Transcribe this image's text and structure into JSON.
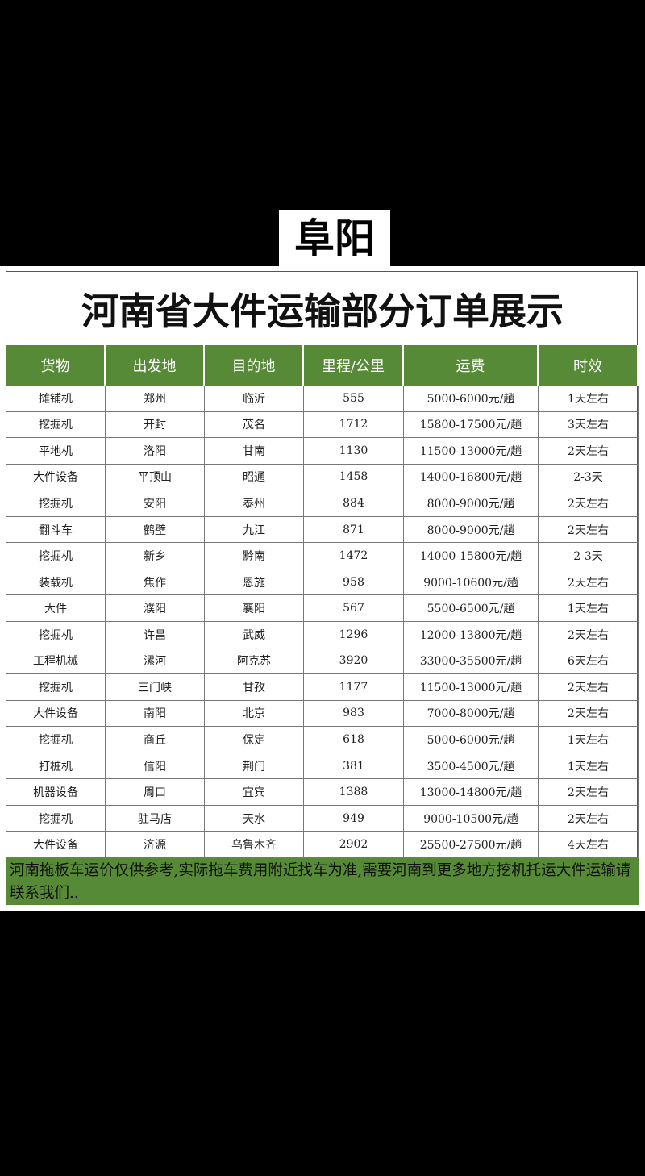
{
  "header": {
    "badge": "阜阳"
  },
  "table": {
    "title": "河南省大件运输部分订单展示",
    "columns": [
      "货物",
      "出发地",
      "目的地",
      "里程/公里",
      "运费",
      "时效"
    ],
    "rows": [
      [
        "摊铺机",
        "郑州",
        "临沂",
        555,
        "5000-6000元/趟",
        "1天左右"
      ],
      [
        "挖掘机",
        "开封",
        "茂名",
        1712,
        "15800-17500元/趟",
        "3天左右"
      ],
      [
        "平地机",
        "洛阳",
        "甘南",
        1130,
        "11500-13000元/趟",
        "2天左右"
      ],
      [
        "大件设备",
        "平顶山",
        "昭通",
        1458,
        "14000-16800元/趟",
        "2-3天"
      ],
      [
        "挖掘机",
        "安阳",
        "泰州",
        884,
        "8000-9000元/趟",
        "2天左右"
      ],
      [
        "翻斗车",
        "鹤壁",
        "九江",
        871,
        "8000-9000元/趟",
        "2天左右"
      ],
      [
        "挖掘机",
        "新乡",
        "黔南",
        1472,
        "14000-15800元/趟",
        "2-3天"
      ],
      [
        "装载机",
        "焦作",
        "恩施",
        958,
        "9000-10600元/趟",
        "2天左右"
      ],
      [
        "大件",
        "濮阳",
        "襄阳",
        567,
        "5500-6500元/趟",
        "1天左右"
      ],
      [
        "挖掘机",
        "许昌",
        "武威",
        1296,
        "12000-13800元/趟",
        "2天左右"
      ],
      [
        "工程机械",
        "漯河",
        "阿克苏",
        3920,
        "33000-35500元/趟",
        "6天左右"
      ],
      [
        "挖掘机",
        "三门峡",
        "甘孜",
        1177,
        "11500-13000元/趟",
        "2天左右"
      ],
      [
        "大件设备",
        "南阳",
        "北京",
        983,
        "7000-8000元/趟",
        "2天左右"
      ],
      [
        "挖掘机",
        "商丘",
        "保定",
        618,
        "5000-6000元/趟",
        "1天左右"
      ],
      [
        "打桩机",
        "信阳",
        "荆门",
        381,
        "3500-4500元/趟",
        "1天左右"
      ],
      [
        "机器设备",
        "周口",
        "宜宾",
        1388,
        "13000-14800元/趟",
        "2天左右"
      ],
      [
        "挖掘机",
        "驻马店",
        "天水",
        949,
        "9000-10500元/趟",
        "2天左右"
      ],
      [
        "大件设备",
        "济源",
        "乌鲁木齐",
        2902,
        "25500-27500元/趟",
        "4天左右"
      ]
    ]
  },
  "footer": {
    "note": "河南拖板车运价仅供参考,实际拖车费用附近找车为准,需要河南到更多地方挖机托运大件运输请联系我们.."
  }
}
